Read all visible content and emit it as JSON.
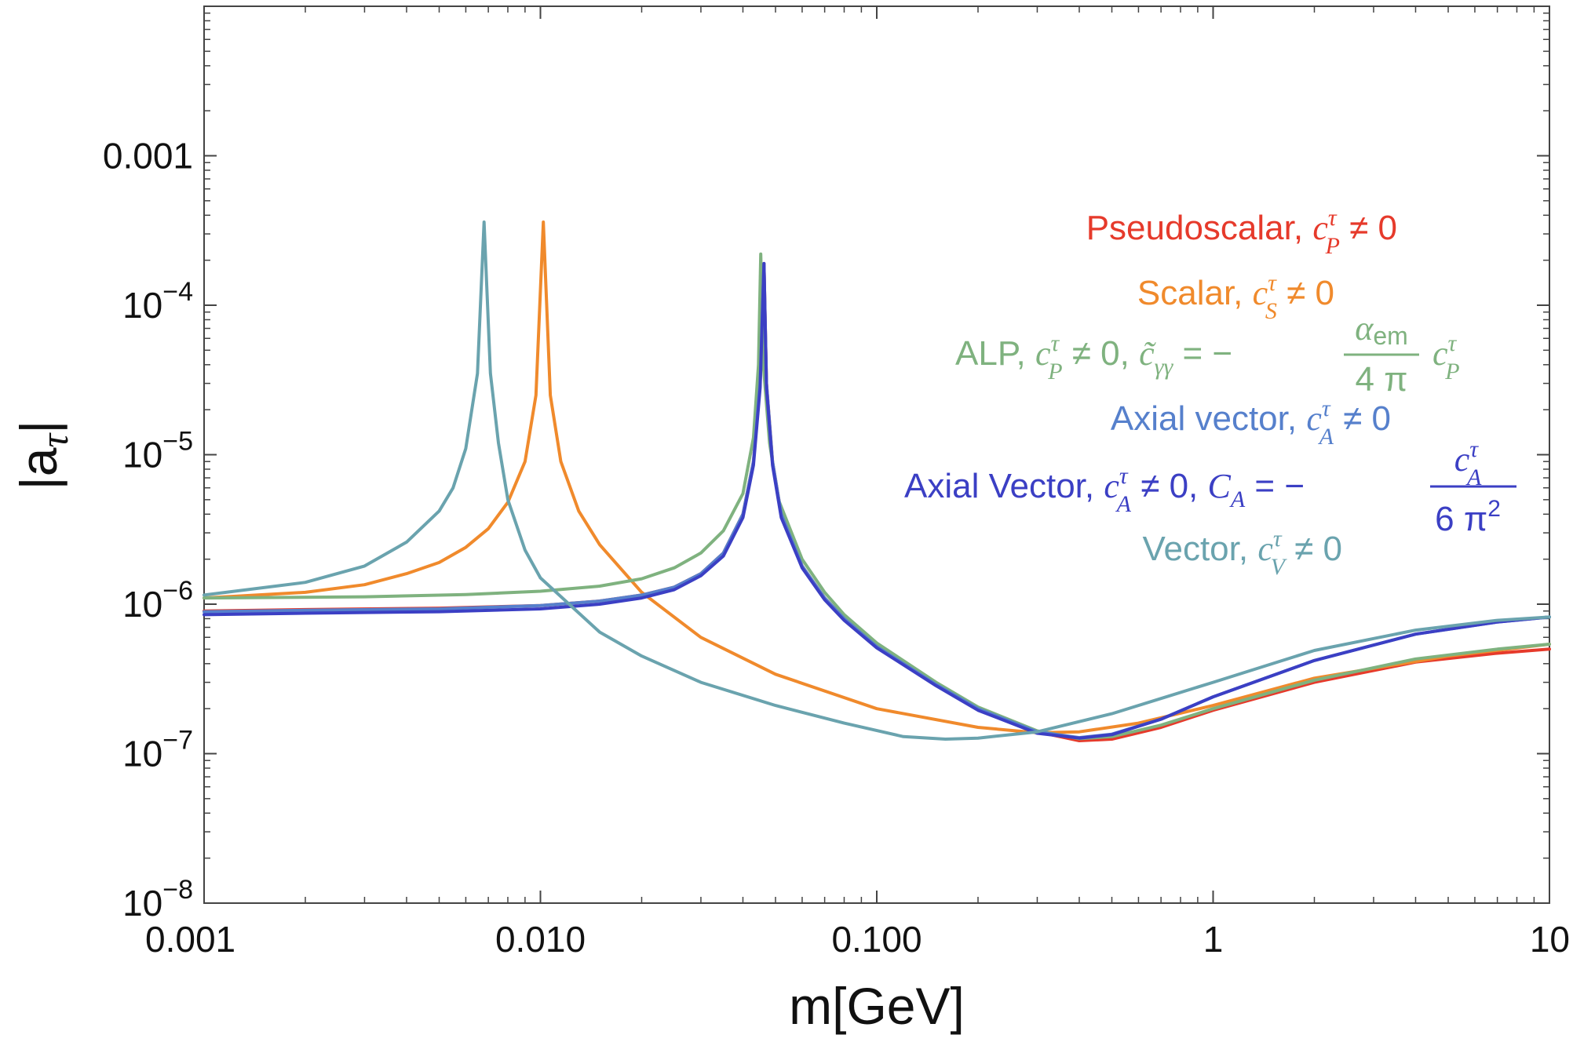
{
  "chart_data": {
    "type": "line",
    "title": "",
    "xlabel": "m[GeV]",
    "ylabel_main": "|a",
    "ylabel_sub": "τ",
    "ylabel_close": "|",
    "xscale": "log",
    "yscale": "log",
    "xlim": [
      0.001,
      10
    ],
    "ylim": [
      1e-08,
      0.01
    ],
    "grid": false,
    "x_ticks": [
      {
        "value": 0.001,
        "label": "0.001"
      },
      {
        "value": 0.01,
        "label": "0.010"
      },
      {
        "value": 0.1,
        "label": "0.100"
      },
      {
        "value": 1,
        "label": "1"
      },
      {
        "value": 10,
        "label": "10"
      }
    ],
    "y_ticks": [
      {
        "value": 1e-08,
        "base": "10",
        "exp": "−8"
      },
      {
        "value": 1e-07,
        "base": "10",
        "exp": "−7"
      },
      {
        "value": 1e-06,
        "base": "10",
        "exp": "−6"
      },
      {
        "value": 1e-05,
        "base": "10",
        "exp": "−5"
      },
      {
        "value": 0.0001,
        "base": "10",
        "exp": "−4"
      },
      {
        "value": 0.001,
        "label": "0.001"
      }
    ],
    "legend_position": "top-right",
    "series": [
      {
        "name": "Pseudoscalar",
        "color": "#e63a2b",
        "points": [
          [
            0.001,
            9e-07
          ],
          [
            0.002,
            9.2e-07
          ],
          [
            0.005,
            9.4e-07
          ],
          [
            0.01,
            9.8e-07
          ],
          [
            0.015,
            1.05e-06
          ],
          [
            0.02,
            1.15e-06
          ],
          [
            0.025,
            1.3e-06
          ],
          [
            0.03,
            1.6e-06
          ],
          [
            0.035,
            2.2e-06
          ],
          [
            0.04,
            4e-06
          ],
          [
            0.043,
            9e-06
          ],
          [
            0.045,
            3e-05
          ],
          [
            0.0462,
            0.00019
          ],
          [
            0.047,
            3e-05
          ],
          [
            0.049,
            9e-06
          ],
          [
            0.052,
            4e-06
          ],
          [
            0.06,
            1.8e-06
          ],
          [
            0.07,
            1.1e-06
          ],
          [
            0.08,
            8e-07
          ],
          [
            0.1,
            5.2e-07
          ],
          [
            0.15,
            2.9e-07
          ],
          [
            0.2,
            2e-07
          ],
          [
            0.3,
            1.4e-07
          ],
          [
            0.4,
            1.22e-07
          ],
          [
            0.5,
            1.25e-07
          ],
          [
            0.7,
            1.5e-07
          ],
          [
            1,
            1.95e-07
          ],
          [
            2,
            3e-07
          ],
          [
            4,
            4.1e-07
          ],
          [
            7,
            4.7e-07
          ],
          [
            10,
            5e-07
          ]
        ]
      },
      {
        "name": "Scalar",
        "color": "#f08a2c",
        "points": [
          [
            0.001,
            1.1e-06
          ],
          [
            0.002,
            1.2e-06
          ],
          [
            0.003,
            1.35e-06
          ],
          [
            0.004,
            1.6e-06
          ],
          [
            0.005,
            1.9e-06
          ],
          [
            0.006,
            2.4e-06
          ],
          [
            0.007,
            3.2e-06
          ],
          [
            0.008,
            4.8e-06
          ],
          [
            0.009,
            9e-06
          ],
          [
            0.0097,
            2.5e-05
          ],
          [
            0.0102,
            0.00036
          ],
          [
            0.0107,
            2.5e-05
          ],
          [
            0.0115,
            9e-06
          ],
          [
            0.013,
            4.2e-06
          ],
          [
            0.015,
            2.5e-06
          ],
          [
            0.02,
            1.2e-06
          ],
          [
            0.03,
            6e-07
          ],
          [
            0.05,
            3.4e-07
          ],
          [
            0.1,
            2e-07
          ],
          [
            0.2,
            1.5e-07
          ],
          [
            0.3,
            1.38e-07
          ],
          [
            0.4,
            1.4e-07
          ],
          [
            0.6,
            1.6e-07
          ],
          [
            1,
            2.1e-07
          ],
          [
            2,
            3.2e-07
          ],
          [
            5,
            4.5e-07
          ],
          [
            10,
            5.4e-07
          ]
        ]
      },
      {
        "name": "ALP",
        "color": "#7fb27f",
        "points": [
          [
            0.001,
            1.1e-06
          ],
          [
            0.003,
            1.12e-06
          ],
          [
            0.006,
            1.16e-06
          ],
          [
            0.01,
            1.22e-06
          ],
          [
            0.015,
            1.32e-06
          ],
          [
            0.02,
            1.48e-06
          ],
          [
            0.025,
            1.75e-06
          ],
          [
            0.03,
            2.2e-06
          ],
          [
            0.035,
            3.1e-06
          ],
          [
            0.04,
            5.5e-06
          ],
          [
            0.043,
            1.3e-05
          ],
          [
            0.0445,
            4e-05
          ],
          [
            0.0452,
            0.00022
          ],
          [
            0.046,
            4e-05
          ],
          [
            0.048,
            1.2e-05
          ],
          [
            0.051,
            5e-06
          ],
          [
            0.06,
            2e-06
          ],
          [
            0.07,
            1.2e-06
          ],
          [
            0.08,
            8.5e-07
          ],
          [
            0.1,
            5.5e-07
          ],
          [
            0.15,
            3e-07
          ],
          [
            0.2,
            2.05e-07
          ],
          [
            0.3,
            1.42e-07
          ],
          [
            0.4,
            1.26e-07
          ],
          [
            0.5,
            1.3e-07
          ],
          [
            0.7,
            1.55e-07
          ],
          [
            1,
            2e-07
          ],
          [
            2,
            3.1e-07
          ],
          [
            4,
            4.3e-07
          ],
          [
            7,
            5e-07
          ],
          [
            10,
            5.4e-07
          ]
        ]
      },
      {
        "name": "Axial vector",
        "color": "#5680cc",
        "points": [
          [
            0.001,
            8.9e-07
          ],
          [
            0.002,
            9.1e-07
          ],
          [
            0.005,
            9.3e-07
          ],
          [
            0.01,
            9.8e-07
          ],
          [
            0.015,
            1.05e-06
          ],
          [
            0.02,
            1.15e-06
          ],
          [
            0.025,
            1.3e-06
          ],
          [
            0.03,
            1.6e-06
          ],
          [
            0.035,
            2.2e-06
          ],
          [
            0.04,
            4e-06
          ],
          [
            0.043,
            9e-06
          ],
          [
            0.045,
            3e-05
          ],
          [
            0.0462,
            0.00019
          ],
          [
            0.047,
            3e-05
          ],
          [
            0.049,
            9e-06
          ],
          [
            0.052,
            4e-06
          ],
          [
            0.06,
            1.8e-06
          ],
          [
            0.07,
            1.1e-06
          ],
          [
            0.08,
            8e-07
          ],
          [
            0.1,
            5.2e-07
          ],
          [
            0.15,
            2.9e-07
          ],
          [
            0.2,
            2e-07
          ],
          [
            0.3,
            1.4e-07
          ],
          [
            0.4,
            1.28e-07
          ],
          [
            0.5,
            1.35e-07
          ],
          [
            0.7,
            1.7e-07
          ],
          [
            1,
            2.4e-07
          ],
          [
            2,
            4.2e-07
          ],
          [
            4,
            6.3e-07
          ],
          [
            7,
            7.6e-07
          ],
          [
            10,
            8.2e-07
          ]
        ]
      },
      {
        "name": "Axial Vector CA",
        "color": "#3b3fc4",
        "points": [
          [
            0.001,
            8.5e-07
          ],
          [
            0.002,
            8.7e-07
          ],
          [
            0.005,
            8.9e-07
          ],
          [
            0.01,
            9.3e-07
          ],
          [
            0.015,
            1e-06
          ],
          [
            0.02,
            1.1e-06
          ],
          [
            0.025,
            1.25e-06
          ],
          [
            0.03,
            1.55e-06
          ],
          [
            0.035,
            2.1e-06
          ],
          [
            0.04,
            3.8e-06
          ],
          [
            0.043,
            8.5e-06
          ],
          [
            0.045,
            2.8e-05
          ],
          [
            0.0462,
            0.00019
          ],
          [
            0.047,
            2.8e-05
          ],
          [
            0.049,
            8.5e-06
          ],
          [
            0.052,
            3.8e-06
          ],
          [
            0.06,
            1.75e-06
          ],
          [
            0.07,
            1.07e-06
          ],
          [
            0.08,
            7.8e-07
          ],
          [
            0.1,
            5.1e-07
          ],
          [
            0.15,
            2.85e-07
          ],
          [
            0.2,
            1.95e-07
          ],
          [
            0.3,
            1.37e-07
          ],
          [
            0.4,
            1.27e-07
          ],
          [
            0.5,
            1.34e-07
          ],
          [
            0.7,
            1.7e-07
          ],
          [
            1,
            2.4e-07
          ],
          [
            2,
            4.2e-07
          ],
          [
            4,
            6.3e-07
          ],
          [
            7,
            7.6e-07
          ],
          [
            10,
            8.2e-07
          ]
        ]
      },
      {
        "name": "Vector",
        "color": "#6aa3ae",
        "points": [
          [
            0.001,
            1.15e-06
          ],
          [
            0.002,
            1.4e-06
          ],
          [
            0.003,
            1.8e-06
          ],
          [
            0.004,
            2.6e-06
          ],
          [
            0.005,
            4.2e-06
          ],
          [
            0.0055,
            6e-06
          ],
          [
            0.006,
            1.1e-05
          ],
          [
            0.0065,
            3.5e-05
          ],
          [
            0.0068,
            0.00036
          ],
          [
            0.0071,
            3.5e-05
          ],
          [
            0.0075,
            1.2e-05
          ],
          [
            0.008,
            5e-06
          ],
          [
            0.009,
            2.3e-06
          ],
          [
            0.01,
            1.5e-06
          ],
          [
            0.015,
            6.5e-07
          ],
          [
            0.02,
            4.5e-07
          ],
          [
            0.03,
            3e-07
          ],
          [
            0.05,
            2.1e-07
          ],
          [
            0.08,
            1.6e-07
          ],
          [
            0.12,
            1.3e-07
          ],
          [
            0.16,
            1.25e-07
          ],
          [
            0.2,
            1.27e-07
          ],
          [
            0.3,
            1.4e-07
          ],
          [
            0.5,
            1.85e-07
          ],
          [
            1,
            3e-07
          ],
          [
            2,
            4.9e-07
          ],
          [
            4,
            6.7e-07
          ],
          [
            7,
            7.8e-07
          ],
          [
            10,
            8.2e-07
          ]
        ]
      }
    ],
    "legend": [
      {
        "series": "Pseudoscalar",
        "text": "Pseudoscalar, ",
        "math": "c",
        "sup": "τ",
        "sub": "P",
        "tail": " ≠ 0"
      },
      {
        "series": "Scalar",
        "text": "Scalar, ",
        "math": "c",
        "sup": "τ",
        "sub": "S",
        "tail": " ≠ 0"
      },
      {
        "series": "ALP",
        "text": "ALP, ",
        "math": "c",
        "sup": "τ",
        "sub": "P",
        "tail": " ≠ 0, ",
        "extra_math": "c̃",
        "extra_sub": "γγ",
        "extra_eq": " = −",
        "frac_num": "α",
        "frac_num_sub": "em",
        "frac_den": "4 π",
        "after_frac": "c",
        "after_sup": "τ",
        "after_sub": "P"
      },
      {
        "series": "Axial vector",
        "text": "Axial vector, ",
        "math": "c",
        "sup": "τ",
        "sub": "A",
        "tail": " ≠ 0"
      },
      {
        "series": "Axial Vector CA",
        "text": "Axial Vector, ",
        "math": "c",
        "sup": "τ",
        "sub": "A",
        "tail": " ≠ 0, ",
        "extra_math": "C",
        "extra_sub": "A",
        "extra_eq": " = −",
        "frac_num": "c",
        "frac_num_sup": "τ",
        "frac_num_sub": "A",
        "frac_den": "6 π",
        "frac_den_sup": "2"
      },
      {
        "series": "Vector",
        "text": "Vector, ",
        "math": "c",
        "sup": "τ",
        "sub": "V",
        "tail": " ≠ 0"
      }
    ]
  }
}
